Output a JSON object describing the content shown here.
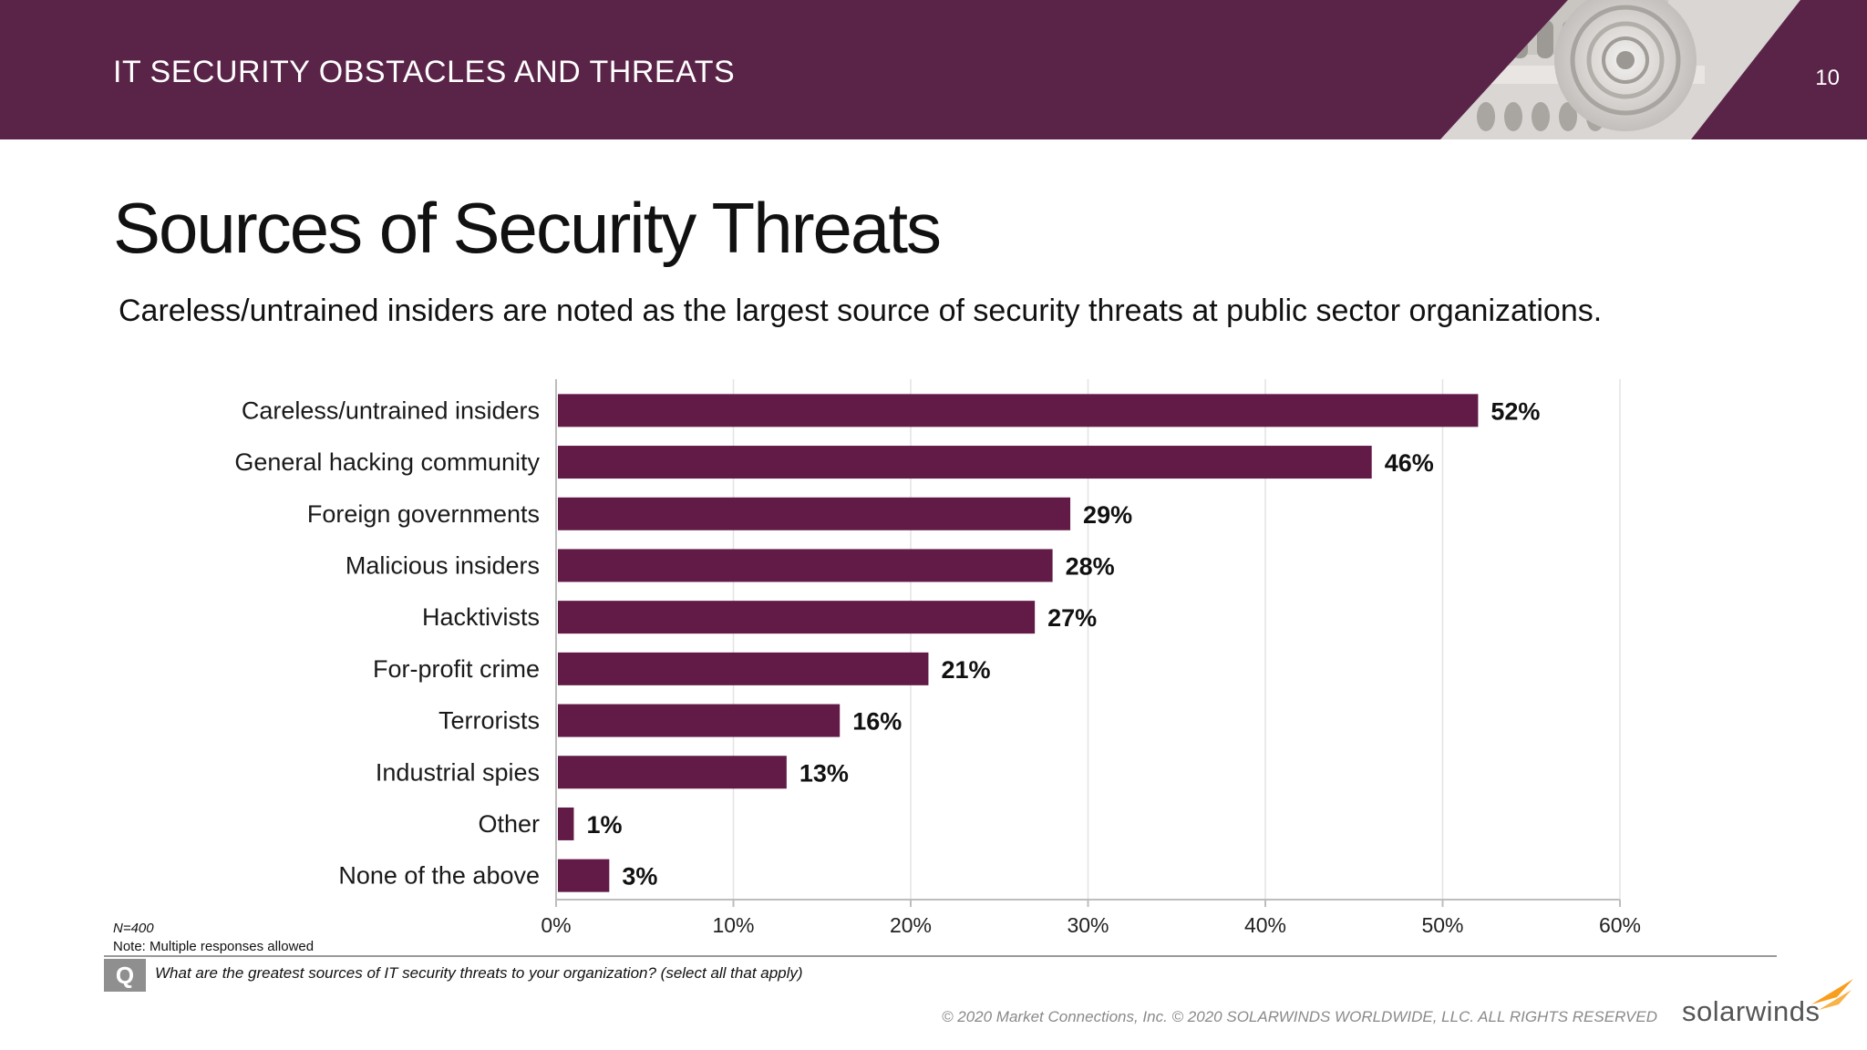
{
  "header": {
    "section_title": "IT SECURITY OBSTACLES AND THREATS",
    "page_number": "10"
  },
  "slide": {
    "title": "Sources of Security Threats",
    "subtitle": "Careless/untrained insiders are noted as the largest source of security threats at public sector organizations."
  },
  "chart_data": {
    "type": "bar",
    "orientation": "horizontal",
    "categories": [
      "Careless/untrained insiders",
      "General hacking community",
      "Foreign governments",
      "Malicious insiders",
      "Hacktivists",
      "For-profit crime",
      "Terrorists",
      "Industrial spies",
      "Other",
      "None of the above"
    ],
    "values": [
      52,
      46,
      29,
      28,
      27,
      21,
      16,
      13,
      1,
      3
    ],
    "value_labels": [
      "52%",
      "46%",
      "29%",
      "28%",
      "27%",
      "21%",
      "16%",
      "13%",
      "1%",
      "3%"
    ],
    "xlim": [
      0,
      60
    ],
    "x_ticks": [
      0,
      10,
      20,
      30,
      40,
      50,
      60
    ],
    "x_tick_labels": [
      "0%",
      "10%",
      "20%",
      "30%",
      "40%",
      "50%",
      "60%"
    ],
    "grid": true,
    "bar_color": "#621a47"
  },
  "footnotes": {
    "n": "N=400",
    "note": "Note: Multiple responses allowed"
  },
  "question": {
    "icon": "Q",
    "text": "What are the greatest sources of IT security threats to your organization? (select all that apply)"
  },
  "footer": {
    "copyright": "© 2020 Market Connections, Inc. © 2020 SOLARWINDS WORLDWIDE, LLC. ALL RIGHTS RESERVED",
    "logo_text": "solarwinds",
    "logo_color": "#f99d1c"
  },
  "colors": {
    "header_bg": "#5a2448",
    "bar": "#621a47"
  }
}
